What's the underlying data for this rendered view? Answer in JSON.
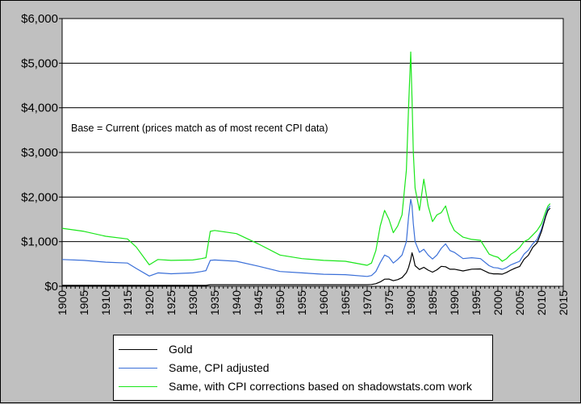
{
  "chart_data": {
    "type": "line",
    "title": "",
    "xlabel": "",
    "ylabel": "",
    "annotation": "Base = Current (prices match as of most recent CPI data)",
    "xlim": [
      1900,
      2015
    ],
    "ylim": [
      0,
      6000
    ],
    "x_ticks": [
      "1900",
      "1905",
      "1910",
      "1915",
      "1920",
      "1925",
      "1930",
      "1935",
      "1940",
      "1945",
      "1950",
      "1955",
      "1960",
      "1965",
      "1970",
      "1975",
      "1980",
      "1985",
      "1990",
      "1995",
      "2000",
      "2005",
      "2010",
      "2015"
    ],
    "y_ticks": [
      "$0",
      "$1,000",
      "$2,000",
      "$3,000",
      "$4,000",
      "$5,000",
      "$6,000"
    ],
    "y_values": [
      0,
      1000,
      2000,
      3000,
      4000,
      5000,
      6000
    ],
    "grid": "horizontal",
    "legend_position": "bottom",
    "series": [
      {
        "name": "Gold",
        "color": "#000000",
        "x": [
          1900,
          1933,
          1934,
          1970,
          1971,
          1972,
          1973,
          1974,
          1975,
          1976,
          1977,
          1978,
          1979,
          1979.5,
          1980,
          1980.3,
          1980.6,
          1981,
          1982,
          1983,
          1984,
          1985,
          1986,
          1987,
          1988,
          1989,
          1990,
          1992,
          1994,
          1996,
          1998,
          1999,
          2000,
          2001,
          2002,
          2003,
          2004,
          2005,
          2006,
          2007,
          2008,
          2009,
          2010,
          2011,
          2011.5,
          2012
        ],
        "y": [
          20,
          20,
          35,
          35,
          40,
          58,
          97,
          159,
          161,
          125,
          148,
          193,
          306,
          420,
          600,
          750,
          650,
          460,
          376,
          424,
          361,
          317,
          368,
          447,
          437,
          381,
          384,
          344,
          384,
          388,
          294,
          279,
          279,
          271,
          310,
          363,
          409,
          444,
          603,
          695,
          872,
          972,
          1225,
          1572,
          1700,
          1750
        ]
      },
      {
        "name": "Same, CPI adjusted",
        "color": "#3a6fd8",
        "x": [
          1900,
          1905,
          1910,
          1915,
          1917,
          1920,
          1922,
          1925,
          1930,
          1932,
          1933,
          1934,
          1935,
          1940,
          1945,
          1950,
          1955,
          1960,
          1965,
          1970,
          1971,
          1972,
          1973,
          1974,
          1975,
          1976,
          1977,
          1978,
          1979,
          1979.5,
          1980,
          1980.3,
          1980.6,
          1981,
          1982,
          1983,
          1984,
          1985,
          1986,
          1987,
          1988,
          1989,
          1990,
          1992,
          1994,
          1996,
          1998,
          1999,
          2000,
          2001,
          2002,
          2003,
          2004,
          2005,
          2006,
          2007,
          2008,
          2009,
          2010,
          2011,
          2011.5,
          2012
        ],
        "y": [
          600,
          580,
          540,
          520,
          400,
          230,
          300,
          280,
          300,
          330,
          350,
          580,
          590,
          560,
          450,
          330,
          300,
          270,
          260,
          220,
          240,
          330,
          530,
          700,
          650,
          520,
          600,
          700,
          1000,
          1550,
          1950,
          1800,
          1400,
          1000,
          760,
          830,
          700,
          610,
          700,
          850,
          950,
          800,
          760,
          620,
          640,
          620,
          460,
          420,
          410,
          380,
          420,
          480,
          520,
          560,
          720,
          810,
          950,
          1050,
          1280,
          1600,
          1750,
          1800
        ]
      },
      {
        "name": "Same, with CPI corrections based on shadowstats.com work",
        "color": "#19e619",
        "x": [
          1900,
          1905,
          1910,
          1915,
          1917,
          1920,
          1922,
          1925,
          1930,
          1932,
          1933,
          1934,
          1935,
          1940,
          1945,
          1950,
          1955,
          1960,
          1965,
          1970,
          1971,
          1972,
          1973,
          1974,
          1975,
          1976,
          1977,
          1978,
          1979,
          1979.5,
          1980,
          1980.3,
          1980.6,
          1981,
          1982,
          1983,
          1984,
          1985,
          1986,
          1987,
          1988,
          1989,
          1990,
          1992,
          1994,
          1996,
          1998,
          1999,
          2000,
          2001,
          2002,
          2003,
          2004,
          2005,
          2006,
          2007,
          2008,
          2009,
          2010,
          2011,
          2011.5,
          2012
        ],
        "y": [
          1300,
          1230,
          1120,
          1060,
          880,
          480,
          600,
          580,
          590,
          620,
          640,
          1230,
          1250,
          1180,
          950,
          700,
          620,
          580,
          560,
          470,
          520,
          800,
          1350,
          1700,
          1500,
          1200,
          1350,
          1600,
          2600,
          4000,
          5250,
          4200,
          3000,
          2200,
          1700,
          2400,
          1800,
          1450,
          1600,
          1650,
          1800,
          1450,
          1250,
          1100,
          1050,
          1030,
          720,
          680,
          650,
          560,
          620,
          720,
          780,
          870,
          1000,
          1050,
          1150,
          1250,
          1400,
          1680,
          1800,
          1850
        ]
      }
    ]
  }
}
